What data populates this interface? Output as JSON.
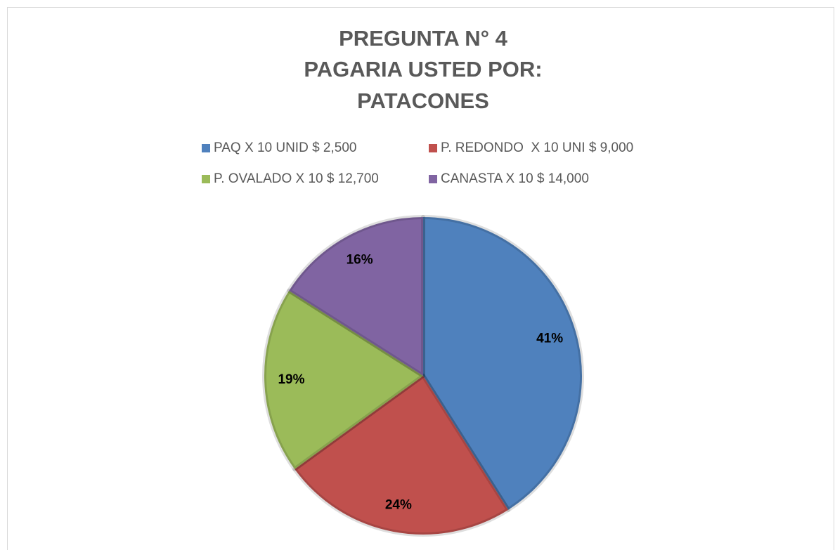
{
  "chart_data": {
    "type": "pie",
    "title": [
      "PREGUNTA N° 4",
      "PAGARIA USTED POR:",
      "PATACONES"
    ],
    "categories": [
      "PAQ X 10 UNID $ 2,500",
      "P. REDONDO  X 10 UNI $ 9,000",
      "P. OVALADO X 10 $ 12,700",
      "CANASTA X 10 $ 14,000"
    ],
    "values": [
      41,
      24,
      19,
      16
    ],
    "value_labels": [
      "41%",
      "24%",
      "19%",
      "16%"
    ],
    "colors": [
      "#4f81bd",
      "#c0504d",
      "#9bbb59",
      "#8064a2"
    ]
  }
}
